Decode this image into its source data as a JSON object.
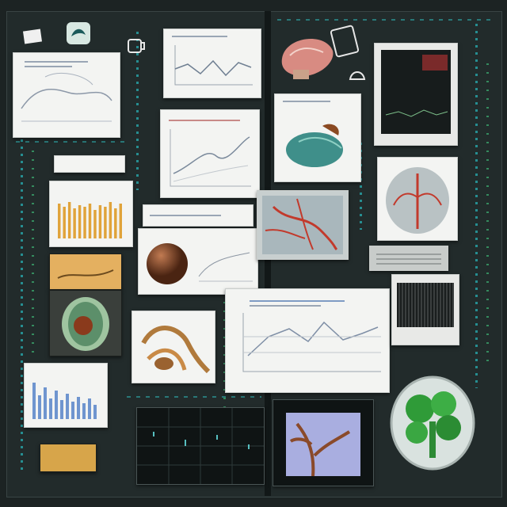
{
  "colors": {
    "background": "#1c2323",
    "accent_cyan": "#29c4c8",
    "accent_green": "#3fbf79",
    "panel_light": "#f3f4f2",
    "panel_dark": "#0f1414"
  },
  "icons": [
    "mug-icon",
    "shell-icon",
    "badge-icon",
    "card-icon",
    "seedling-icon"
  ]
}
